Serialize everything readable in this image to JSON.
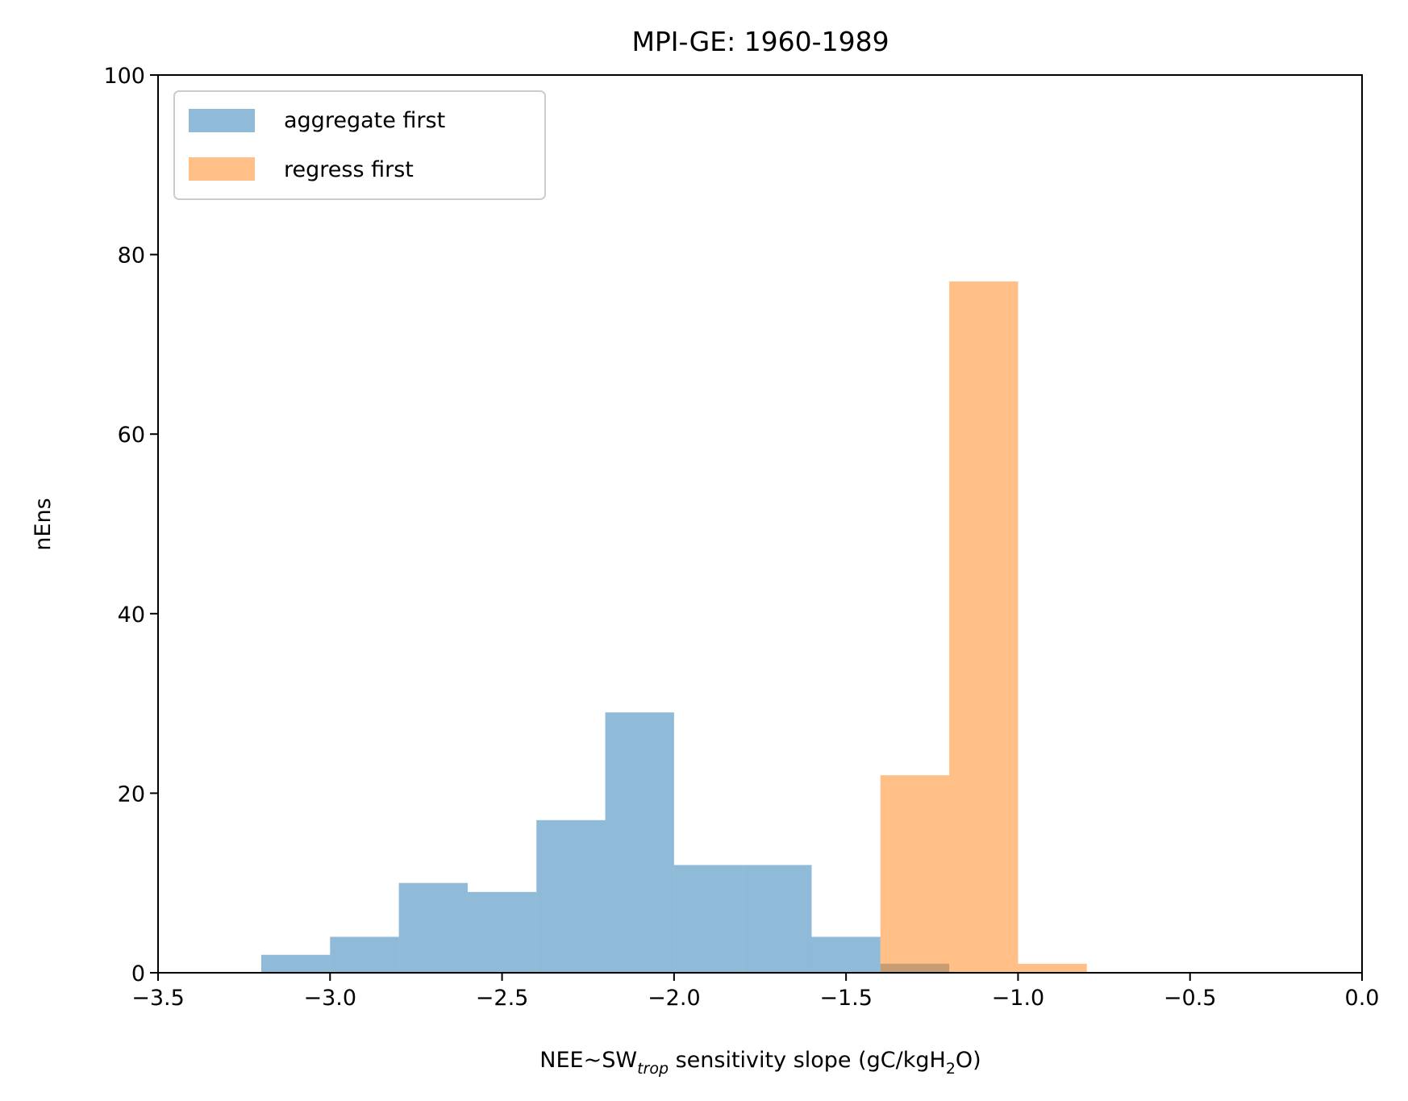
{
  "chart_data": {
    "type": "bar",
    "subtype": "histogram",
    "title": "MPI-GE: 1960-1989",
    "xlabel": {
      "prefix": "NEE~SW",
      "subscript": "trop",
      "middle": " sensitivity slope (gC/kgH",
      "subscript2": "2",
      "suffix": "O)"
    },
    "ylabel": "nEns",
    "xlim": [
      -3.5,
      0.0
    ],
    "ylim": [
      0,
      100
    ],
    "xticks": [
      -3.5,
      -3.0,
      -2.5,
      -2.0,
      -1.5,
      -1.0,
      -0.5,
      0.0
    ],
    "xtick_labels": [
      "−3.5",
      "−3.0",
      "−2.5",
      "−2.0",
      "−1.5",
      "−1.0",
      "−0.5",
      "0.0"
    ],
    "yticks": [
      0,
      20,
      40,
      60,
      80,
      100
    ],
    "ytick_labels": [
      "0",
      "20",
      "40",
      "60",
      "80",
      "100"
    ],
    "grid": false,
    "legend_position": "upper left",
    "series": [
      {
        "name": "aggregate first",
        "color": "#1f77b4",
        "alpha": 0.5,
        "bins": [
          {
            "x0": -3.2,
            "x1": -3.0,
            "count": 2
          },
          {
            "x0": -3.0,
            "x1": -2.8,
            "count": 4
          },
          {
            "x0": -2.8,
            "x1": -2.6,
            "count": 10
          },
          {
            "x0": -2.6,
            "x1": -2.4,
            "count": 9
          },
          {
            "x0": -2.4,
            "x1": -2.2,
            "count": 17
          },
          {
            "x0": -2.2,
            "x1": -2.0,
            "count": 29
          },
          {
            "x0": -2.0,
            "x1": -1.8,
            "count": 12
          },
          {
            "x0": -1.8,
            "x1": -1.6,
            "count": 12
          },
          {
            "x0": -1.6,
            "x1": -1.4,
            "count": 4
          },
          {
            "x0": -1.4,
            "x1": -1.2,
            "count": 1
          }
        ]
      },
      {
        "name": "regress first",
        "color": "#ff7f0e",
        "alpha": 0.5,
        "bins": [
          {
            "x0": -1.4,
            "x1": -1.2,
            "count": 22
          },
          {
            "x0": -1.2,
            "x1": -1.0,
            "count": 77
          },
          {
            "x0": -1.0,
            "x1": -0.8,
            "count": 1
          }
        ]
      }
    ]
  }
}
